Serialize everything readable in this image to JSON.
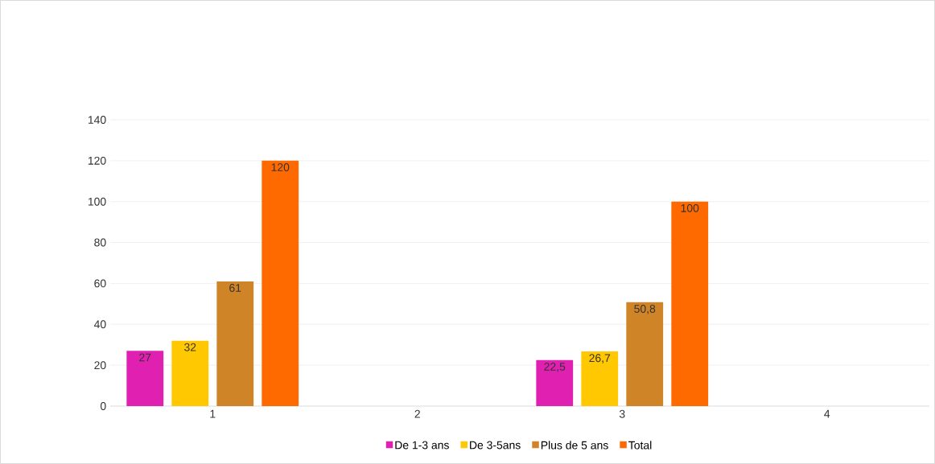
{
  "chart_data": {
    "type": "bar",
    "categories": [
      "1",
      "2",
      "3",
      "4"
    ],
    "series": [
      {
        "name": "De 1-3 ans",
        "color": "#e020b0",
        "values": [
          27,
          null,
          22.5,
          null
        ],
        "value_labels": [
          "27",
          null,
          "22,5",
          null
        ]
      },
      {
        "name": "De 3-5ans",
        "color": "#ffc800",
        "values": [
          32,
          null,
          26.7,
          null
        ],
        "value_labels": [
          "32",
          null,
          "26,7",
          null
        ]
      },
      {
        "name": "Plus de 5 ans",
        "color": "#d08428",
        "values": [
          61,
          null,
          50.8,
          null
        ],
        "value_labels": [
          "61",
          null,
          "50,8",
          null
        ]
      },
      {
        "name": "Total",
        "color": "#ff6a00",
        "values": [
          120,
          null,
          100,
          null
        ],
        "value_labels": [
          "120",
          null,
          "100",
          null
        ]
      }
    ],
    "ylim": [
      0,
      140
    ],
    "yticks": [
      0,
      20,
      40,
      60,
      80,
      100,
      120,
      140
    ],
    "grid": "y",
    "legend": "bottom"
  }
}
